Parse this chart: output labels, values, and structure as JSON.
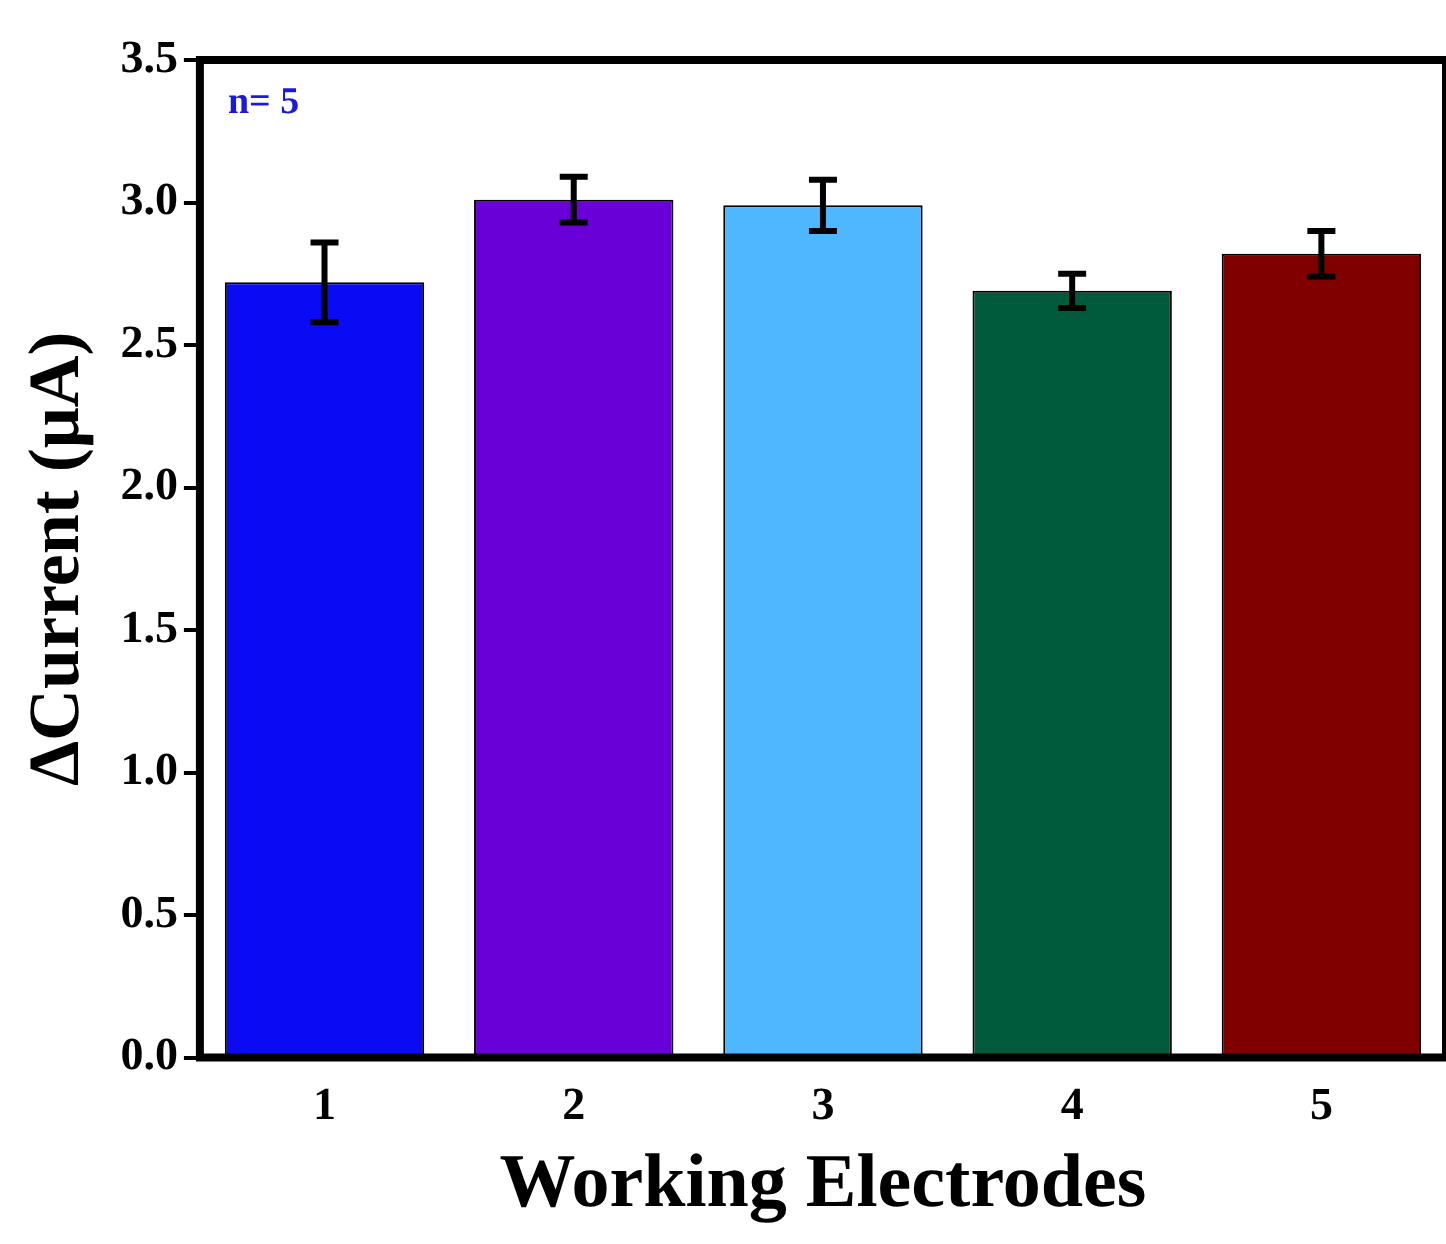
{
  "chart_data": {
    "type": "bar",
    "xlabel": "Working Electrodes",
    "ylabel": "ΔCurrent (μA)",
    "categories": [
      "1",
      "2",
      "3",
      "4",
      "5"
    ],
    "values": [
      2.72,
      3.01,
      2.99,
      2.69,
      2.82
    ],
    "errors": [
      0.14,
      0.08,
      0.09,
      0.06,
      0.08
    ],
    "colors": [
      "#0a0af5",
      "#6a00d8",
      "#4db8ff",
      "#005a3c",
      "#800000"
    ],
    "ylim": [
      0,
      3.5
    ],
    "yticks": [
      {
        "value": 0,
        "label": "0.0"
      },
      {
        "value": 0.5,
        "label": "0.5"
      },
      {
        "value": 1,
        "label": "1.0"
      },
      {
        "value": 1.5,
        "label": "1.5"
      },
      {
        "value": 2,
        "label": "2.0"
      },
      {
        "value": 2.5,
        "label": "2.5"
      },
      {
        "value": 3,
        "label": "3.0"
      },
      {
        "value": 3.5,
        "label": "3.5"
      }
    ],
    "annotations": [
      "n= 5"
    ],
    "grid": false,
    "legend": false
  }
}
